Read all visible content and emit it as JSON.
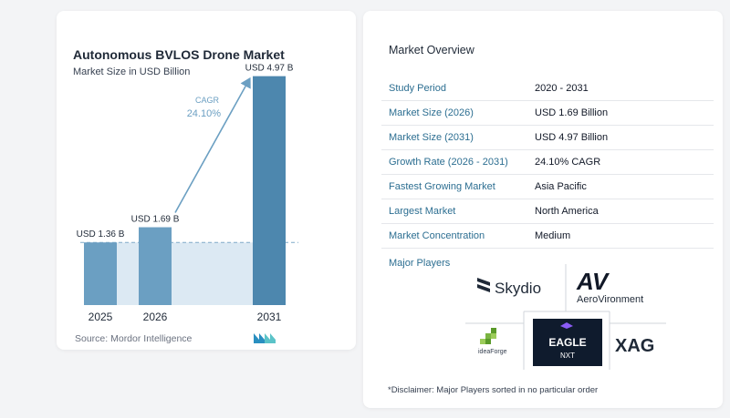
{
  "chart_data": {
    "type": "bar",
    "title": "Autonomous BVLOS Drone Market",
    "subtitle": "Market Size in USD Billion",
    "categories": [
      "2025",
      "2026",
      "2031"
    ],
    "values": [
      1.36,
      1.69,
      4.97
    ],
    "value_labels": [
      "USD 1.36 B",
      "USD 1.69 B",
      "USD 4.97 B"
    ],
    "cagr_label": "CAGR",
    "cagr_value": "24.10%",
    "ylim": [
      0,
      5.2
    ],
    "grid": false,
    "colors": {
      "bar": "#6b9fc2",
      "bar_dark": "#4d87ae",
      "band": "#dce9f3",
      "arrow": "#6b9fc2",
      "cagr_text": "#6b9fc2"
    }
  },
  "source": "Source: Mordor Intelligence",
  "overview": {
    "title": "Market Overview",
    "rows": [
      {
        "key": "Study Period",
        "value": "2020 - 2031"
      },
      {
        "key": "Market Size (2026)",
        "value": "USD 1.69 Billion"
      },
      {
        "key": "Market Size (2031)",
        "value": "USD 4.97 Billion"
      },
      {
        "key": "Growth Rate (2026 - 2031)",
        "value": "24.10% CAGR"
      },
      {
        "key": "Fastest Growing Market",
        "value": "Asia Pacific"
      },
      {
        "key": "Largest Market",
        "value": "North America"
      },
      {
        "key": "Market Concentration",
        "value": "Medium"
      }
    ]
  },
  "players": {
    "title": "Major Players",
    "logos": {
      "skydio": "Skydio",
      "av_mark": "AV",
      "aerovironment": "AeroVironment",
      "ideaforge": "ideaForge",
      "eagle_top": "EAGLE",
      "eagle_bottom": "NXT",
      "xag": "XAG"
    }
  },
  "disclaimer": "*Disclaimer: Major Players sorted in no particular order"
}
